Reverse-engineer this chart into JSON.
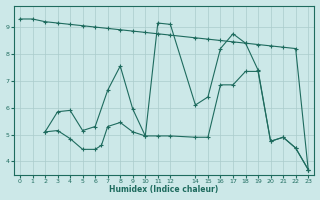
{
  "xlabel": "Humidex (Indice chaleur)",
  "bg_color": "#cce8e8",
  "grid_color": "#aacccc",
  "line_color": "#1e6b5e",
  "xlim": [
    -0.5,
    23.5
  ],
  "ylim": [
    3.5,
    9.8
  ],
  "yticks": [
    4,
    5,
    6,
    7,
    8,
    9
  ],
  "xticks": [
    0,
    1,
    2,
    3,
    4,
    5,
    6,
    7,
    8,
    9,
    10,
    11,
    12,
    14,
    15,
    16,
    17,
    18,
    19,
    20,
    21,
    22,
    23
  ],
  "line1_x": [
    0,
    1,
    2,
    3,
    4,
    5,
    6,
    7,
    8,
    9,
    10,
    11,
    12,
    14,
    15,
    16,
    17,
    18,
    19,
    20,
    21,
    22,
    23
  ],
  "line1_y": [
    9.3,
    9.3,
    9.2,
    9.15,
    9.1,
    9.05,
    9.0,
    8.95,
    8.9,
    8.85,
    8.8,
    8.75,
    8.7,
    8.6,
    8.55,
    8.5,
    8.45,
    8.4,
    8.35,
    8.3,
    8.25,
    8.2,
    3.7
  ],
  "line2_x": [
    2,
    3,
    4,
    5,
    6,
    7,
    8,
    9,
    10,
    11,
    12,
    14,
    15,
    16,
    17,
    18,
    19,
    20,
    21,
    22,
    23
  ],
  "line2_y": [
    5.1,
    5.85,
    5.9,
    5.15,
    5.3,
    6.65,
    7.55,
    5.95,
    4.95,
    4.95,
    4.95,
    4.9,
    4.9,
    6.85,
    6.85,
    7.35,
    7.35,
    4.75,
    4.9,
    4.5,
    3.7
  ],
  "line3_x": [
    2,
    3,
    4,
    5,
    6,
    6.5,
    7,
    8,
    9,
    10,
    11,
    12,
    14,
    15,
    16,
    17,
    18,
    19,
    20,
    21,
    22,
    23
  ],
  "line3_y": [
    5.1,
    5.15,
    4.85,
    4.45,
    4.45,
    4.6,
    5.3,
    5.45,
    5.1,
    4.95,
    9.15,
    9.1,
    6.1,
    6.4,
    8.2,
    8.75,
    8.4,
    7.4,
    4.75,
    4.9,
    4.5,
    3.7
  ]
}
